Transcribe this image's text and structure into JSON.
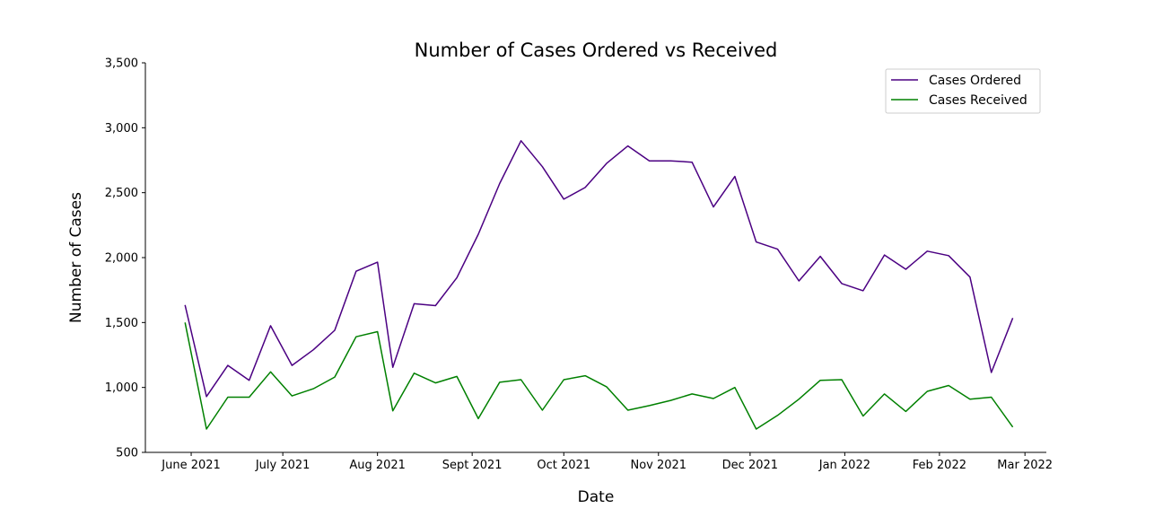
{
  "chart_data": {
    "type": "line",
    "title": "Number of Cases Ordered vs Received",
    "xlabel": "Date",
    "ylabel": "Number of Cases",
    "ylim": [
      500,
      3500
    ],
    "yticks": [
      500,
      1000,
      1500,
      2000,
      2500,
      3000,
      3500
    ],
    "ytick_labels": [
      "500",
      "1,000",
      "1,500",
      "2,000",
      "2,500",
      "3,000",
      "3,500"
    ],
    "xlim": [
      "2021-05-17",
      "2022-03-08"
    ],
    "xticks": [
      "2021-06-01",
      "2021-07-01",
      "2021-08-01",
      "2021-09-01",
      "2021-10-01",
      "2021-11-01",
      "2021-12-01",
      "2022-01-01",
      "2022-02-01",
      "2022-03-01"
    ],
    "xtick_labels": [
      "June 2021",
      "July 2021",
      "Aug 2021",
      "Sept 2021",
      "Oct 2021",
      "Nov 2021",
      "Dec 2021",
      "Jan 2022",
      "Feb 2022",
      "Mar 2022"
    ],
    "x": [
      "2021-05-30",
      "2021-06-06",
      "2021-06-13",
      "2021-06-20",
      "2021-06-27",
      "2021-07-04",
      "2021-07-11",
      "2021-07-18",
      "2021-07-25",
      "2021-08-01",
      "2021-08-06",
      "2021-08-13",
      "2021-08-20",
      "2021-08-27",
      "2021-09-03",
      "2021-09-10",
      "2021-09-17",
      "2021-09-24",
      "2021-10-01",
      "2021-10-08",
      "2021-10-15",
      "2021-10-22",
      "2021-10-29",
      "2021-11-05",
      "2021-11-12",
      "2021-11-19",
      "2021-11-26",
      "2021-12-03",
      "2021-12-10",
      "2021-12-17",
      "2021-12-24",
      "2021-12-31",
      "2022-01-07",
      "2022-01-14",
      "2022-01-21",
      "2022-01-28",
      "2022-02-04",
      "2022-02-11",
      "2022-02-18",
      "2022-02-25"
    ],
    "series": [
      {
        "name": "Cases Ordered",
        "color": "#4b0082",
        "values": [
          1635,
          930,
          1170,
          1055,
          1475,
          1170,
          1290,
          1440,
          1895,
          1965,
          1155,
          1645,
          1630,
          1845,
          2180,
          2570,
          2900,
          2700,
          2450,
          2540,
          2725,
          2860,
          2745,
          2745,
          2735,
          2390,
          2625,
          2120,
          2065,
          1820,
          2010,
          1800,
          1745,
          2020,
          1910,
          2050,
          2015,
          1850,
          1115,
          1535
        ]
      },
      {
        "name": "Cases Received",
        "color": "#008000",
        "values": [
          1500,
          680,
          925,
          925,
          1120,
          935,
          990,
          1080,
          1390,
          1430,
          820,
          1110,
          1035,
          1085,
          760,
          1040,
          1060,
          825,
          1060,
          1090,
          1005,
          825,
          860,
          900,
          950,
          915,
          1000,
          680,
          785,
          910,
          1055,
          1060,
          780,
          950,
          815,
          970,
          1015,
          910,
          925,
          695
        ]
      }
    ],
    "legend": "top-right",
    "grid": false
  }
}
